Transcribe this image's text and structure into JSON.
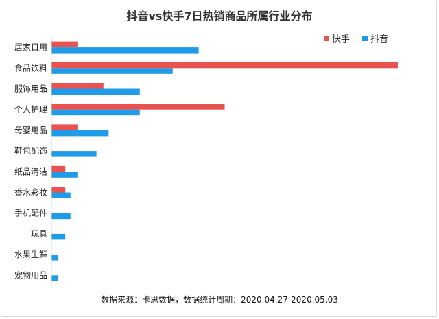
{
  "chart_data": {
    "type": "bar",
    "orientation": "horizontal",
    "title": "抖音vs快手7日热销商品所属行业分布",
    "categories": [
      "居家日用",
      "食品饮料",
      "服饰用品",
      "个人护理",
      "母婴用品",
      "鞋包配饰",
      "纸品清洁",
      "香水彩妆",
      "手机配件",
      "玩具",
      "水果生鲜",
      "宠物用品"
    ],
    "series": [
      {
        "name": "快手",
        "color": "#e8524f",
        "values": [
          7.5,
          100,
          15,
          50,
          7.5,
          0,
          4,
          4,
          0,
          0,
          0,
          0
        ]
      },
      {
        "name": "抖音",
        "color": "#1f9be8",
        "values": [
          42.5,
          35,
          25.5,
          25.5,
          16.5,
          13,
          7.5,
          5.5,
          5.5,
          4,
          2,
          2
        ]
      }
    ],
    "xlim": [
      0,
      100
    ],
    "grid": false,
    "legend": "top-right",
    "source_note": "数据来源：卡思数据，数据统计周期：2020.04.27-2020.05.03"
  }
}
